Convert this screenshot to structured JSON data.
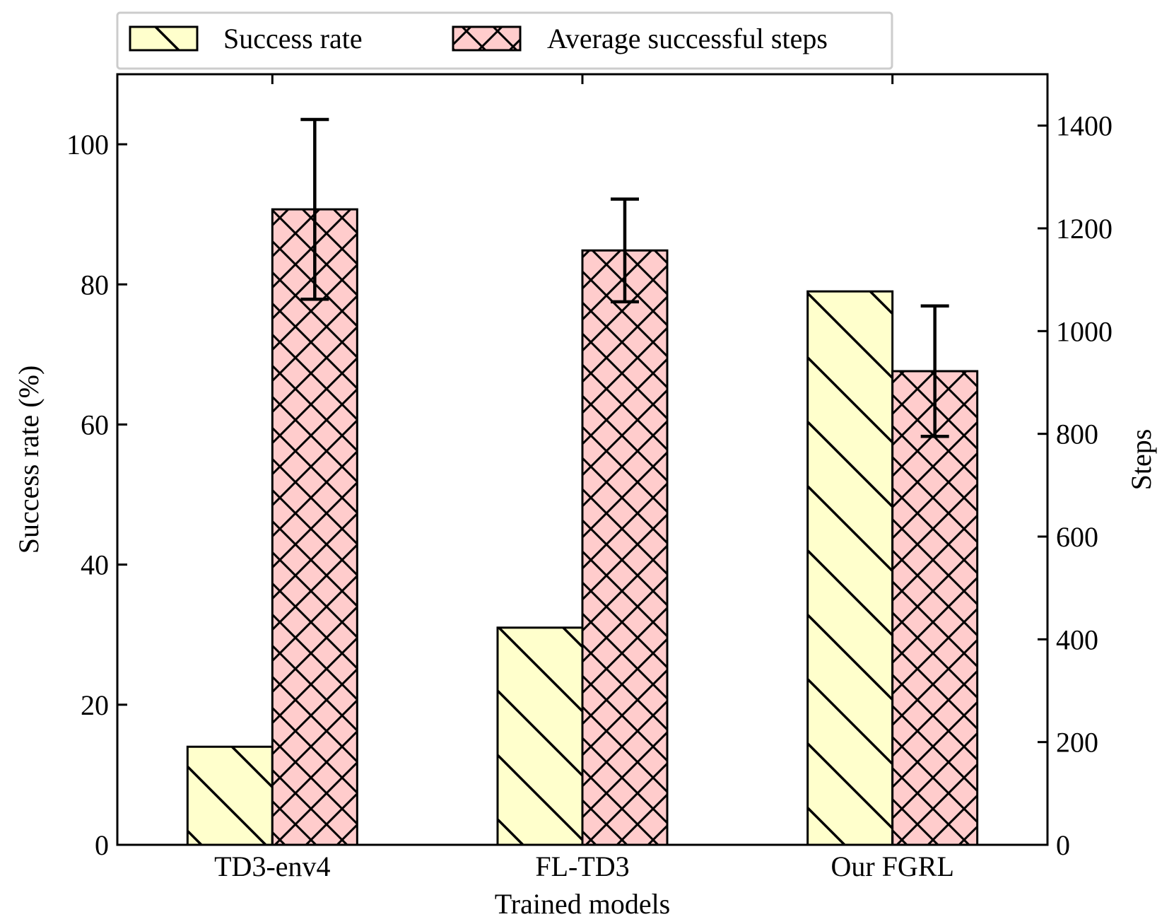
{
  "chart_data": {
    "type": "bar",
    "categories": [
      "TD3-env4",
      "FL-TD3",
      "Our FGRL"
    ],
    "xlabel": "Trained models",
    "ylabel": "Success rate (%)",
    "y2label": "Steps",
    "ylim": [
      0,
      110
    ],
    "y2lim": [
      0,
      1500
    ],
    "yticks": [
      0,
      20,
      40,
      60,
      80,
      100
    ],
    "y2ticks": [
      0,
      200,
      400,
      600,
      800,
      1000,
      1200,
      1400
    ],
    "legend_position": "top-left-outside",
    "series": [
      {
        "name": "Success rate",
        "axis": "left",
        "values": [
          14,
          31,
          79
        ],
        "color": "#ffffcc",
        "hatch": "backslash"
      },
      {
        "name": "Average successful steps",
        "axis": "right",
        "values": [
          1237,
          1157,
          922
        ],
        "errors": [
          175,
          100,
          127
        ],
        "color": "#ffcccc",
        "hatch": "cross"
      }
    ]
  }
}
